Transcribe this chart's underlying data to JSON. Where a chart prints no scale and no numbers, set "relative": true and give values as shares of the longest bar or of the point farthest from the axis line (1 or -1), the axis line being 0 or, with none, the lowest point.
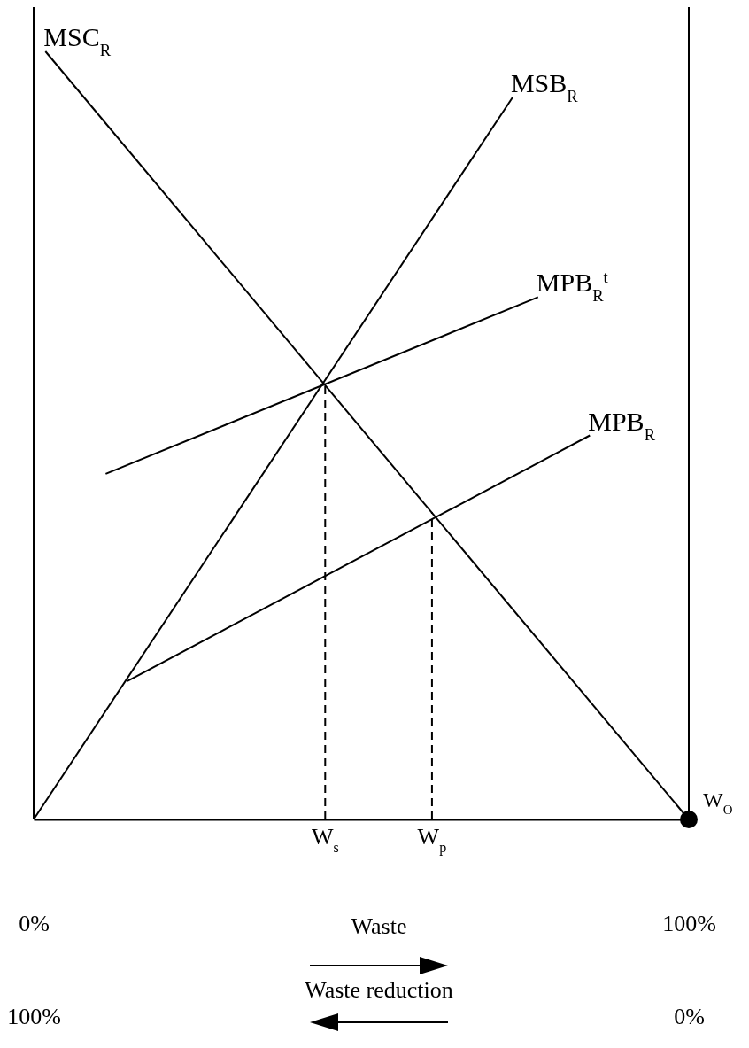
{
  "chart_data": {
    "type": "line",
    "relative": true,
    "line_style": "solid",
    "marker": "none",
    "xlim": [
      0,
      100
    ],
    "xticks": [
      {
        "value": 0,
        "label": "0%"
      },
      {
        "value": 100,
        "label": "100%"
      }
    ],
    "annotations": [
      {
        "text": "W$_{s}$",
        "x": 44.5,
        "y": 0
      },
      {
        "text": "W$_{p}$",
        "x": 60.8,
        "y": 0
      }
    ],
    "xlabel": "Waste",
    "x2lim": [
      100,
      0
    ],
    "x2ticks": [
      {
        "value": 100,
        "label": "100%"
      },
      {
        "value": 0,
        "label": "0%"
      }
    ],
    "x2label": "Waste reduction",
    "series": [
      {
        "name": "MSC$_{R}$",
        "color": "#000000",
        "x": [
          1.8,
          100
        ],
        "values": [
          1,
          0
        ]
      },
      {
        "name": "MSB$_{R}$",
        "color": "#000000",
        "x": [
          0,
          73.1
        ],
        "values": [
          0,
          0.94
        ]
      },
      {
        "name": "MPB$_{R}$$^{t}$",
        "color": "#000000",
        "x": [
          11,
          77
        ],
        "values": [
          0.45,
          0.68
        ]
      },
      {
        "name": "MPB$_{R}$",
        "color": "#000000",
        "x": [
          14.3,
          84.9
        ],
        "values": [
          0.18,
          0.5
        ]
      },
      {
        "color": "#000000",
        "line_style": "dashed",
        "x": [
          44.5,
          44.5
        ],
        "values": [
          0,
          0.57
        ]
      },
      {
        "color": "#000000",
        "line_style": "dashed",
        "x": [
          60.8,
          60.8
        ],
        "values": [
          0,
          0.4
        ]
      },
      {
        "type": "scatter",
        "name": "W$_{O}$",
        "color": "#000000",
        "marker": "circle",
        "x": [
          100
        ],
        "values": [
          0
        ]
      }
    ]
  }
}
